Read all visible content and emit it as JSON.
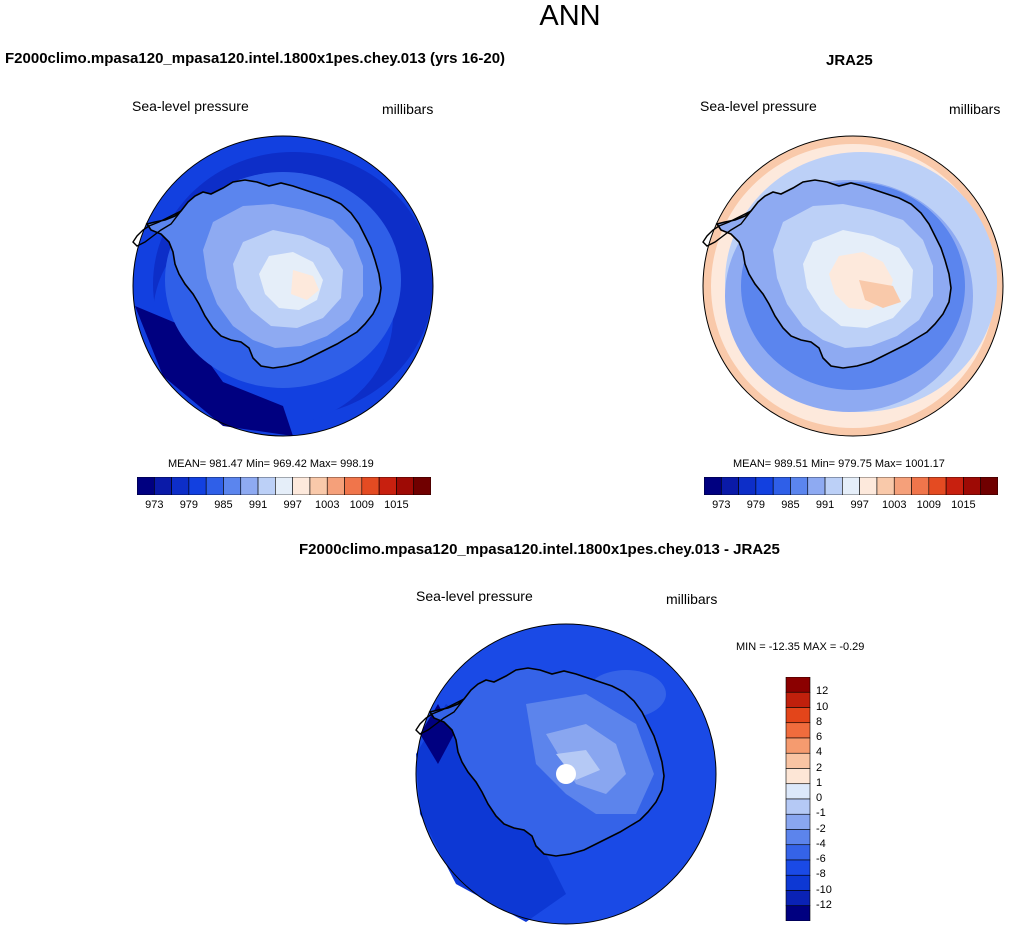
{
  "main_title": "ANN",
  "colors": {
    "abs_palette": [
      "#000080",
      "#0a1aa8",
      "#0d2ec8",
      "#1240e0",
      "#2f5fe8",
      "#5b85ee",
      "#8eaaf2",
      "#bcd0f7",
      "#e5eef9",
      "#fde9dc",
      "#f9c9aa",
      "#f5a07a",
      "#f0754b",
      "#e44b22",
      "#c8200f",
      "#9e0a05",
      "#700000"
    ],
    "diff_palette": [
      "#000080",
      "#0a22b5",
      "#0d38d4",
      "#1a4ae6",
      "#3563e8",
      "#5c84ec",
      "#89a6f0",
      "#b5c9f5",
      "#dce8fa",
      "#fde6d6",
      "#f9c4a3",
      "#f59b6f",
      "#f06c3d",
      "#e3451a",
      "#c0200c",
      "#8b0000"
    ]
  },
  "panels": [
    {
      "title": "F2000climo.mpasa120_mpasa120.intel.1800x1pes.chey.013 (yrs 16-20)",
      "left_label": "Sea-level pressure",
      "right_label": "millibars",
      "stats": "MEAN= 981.47  Min= 969.42  Max= 998.19",
      "colorbar_labels": [
        "973",
        "979",
        "985",
        "991",
        "997",
        "1003",
        "1009",
        "1015"
      ]
    },
    {
      "title": "JRA25",
      "left_label": "Sea-level pressure",
      "right_label": "millibars",
      "stats": "MEAN= 989.51  Min= 979.75  Max= 1001.17",
      "colorbar_labels": [
        "973",
        "979",
        "985",
        "991",
        "997",
        "1003",
        "1009",
        "1015"
      ]
    },
    {
      "title": "F2000climo.mpasa120_mpasa120.intel.1800x1pes.chey.013 - JRA25",
      "left_label": "Sea-level pressure",
      "right_label": "millibars",
      "stats": "MIN = -12.35 MAX =  -0.29",
      "colorbar_labels": [
        "12",
        "10",
        "8",
        "6",
        "4",
        "2",
        "1",
        "0",
        "-1",
        "-2",
        "-4",
        "-6",
        "-8",
        "-10",
        "-12"
      ]
    }
  ]
}
